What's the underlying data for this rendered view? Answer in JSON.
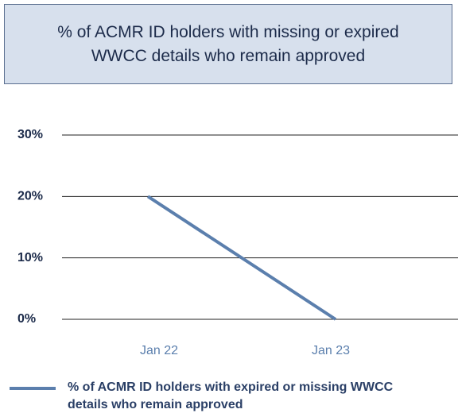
{
  "chart_data": {
    "type": "line",
    "title": "% of ACMR ID holders with missing or expired WWCC details who remain approved",
    "categories": [
      "Jan 22",
      "Jan 23"
    ],
    "series": [
      {
        "name": "% of ACMR ID holders with expired or missing WWCC details who remain approved",
        "color": "#5b7fad",
        "values": [
          20,
          0
        ]
      }
    ],
    "ylim": [
      0,
      30
    ],
    "yticks": [
      {
        "value": 0,
        "label": "0%"
      },
      {
        "value": 10,
        "label": "10%"
      },
      {
        "value": 20,
        "label": "20%"
      },
      {
        "value": 30,
        "label": "30%"
      }
    ],
    "grid": true,
    "legend": "bottom"
  }
}
